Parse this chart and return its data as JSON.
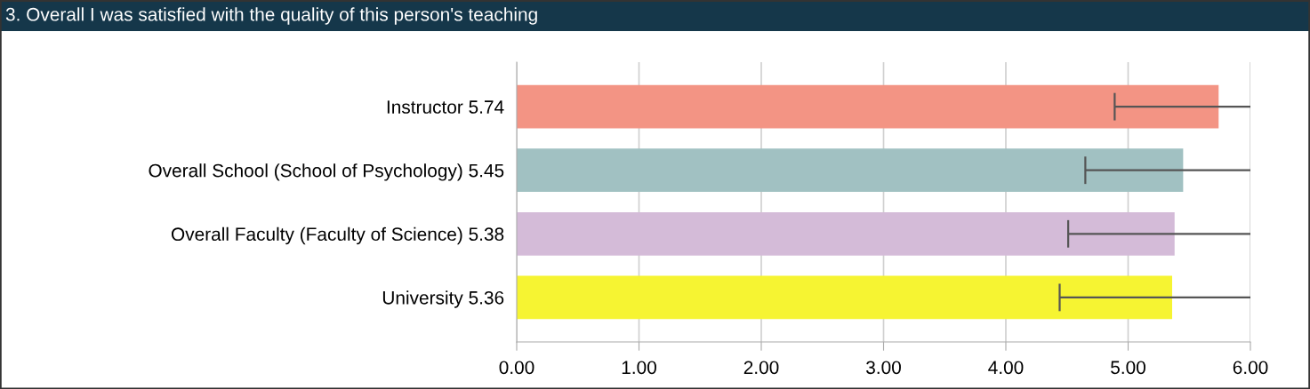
{
  "chart_data": {
    "type": "bar",
    "orientation": "horizontal",
    "title": "3. Overall I was satisfied with the quality of this person's teaching",
    "categories": [
      "Instructor 5.74",
      "Overall School (School of Psychology) 5.45",
      "Overall Faculty (Faculty of Science) 5.38",
      "University 5.36"
    ],
    "values": [
      5.74,
      5.45,
      5.38,
      5.36
    ],
    "colors": [
      "#f39484",
      "#a1c1c2",
      "#d4bbd8",
      "#f6f432"
    ],
    "errors": [
      [
        4.89,
        6.0
      ],
      [
        4.65,
        6.0
      ],
      [
        4.51,
        6.0
      ],
      [
        4.44,
        6.0
      ]
    ],
    "xlim": [
      0,
      6
    ],
    "xticks": [
      {
        "value": 0,
        "label": "0.00"
      },
      {
        "value": 1,
        "label": "1.00"
      },
      {
        "value": 2,
        "label": "2.00"
      },
      {
        "value": 3,
        "label": "3.00"
      },
      {
        "value": 4,
        "label": "4.00"
      },
      {
        "value": 5,
        "label": "5.00"
      },
      {
        "value": 6,
        "label": "6.00"
      }
    ],
    "grid": "x",
    "legend": false
  }
}
